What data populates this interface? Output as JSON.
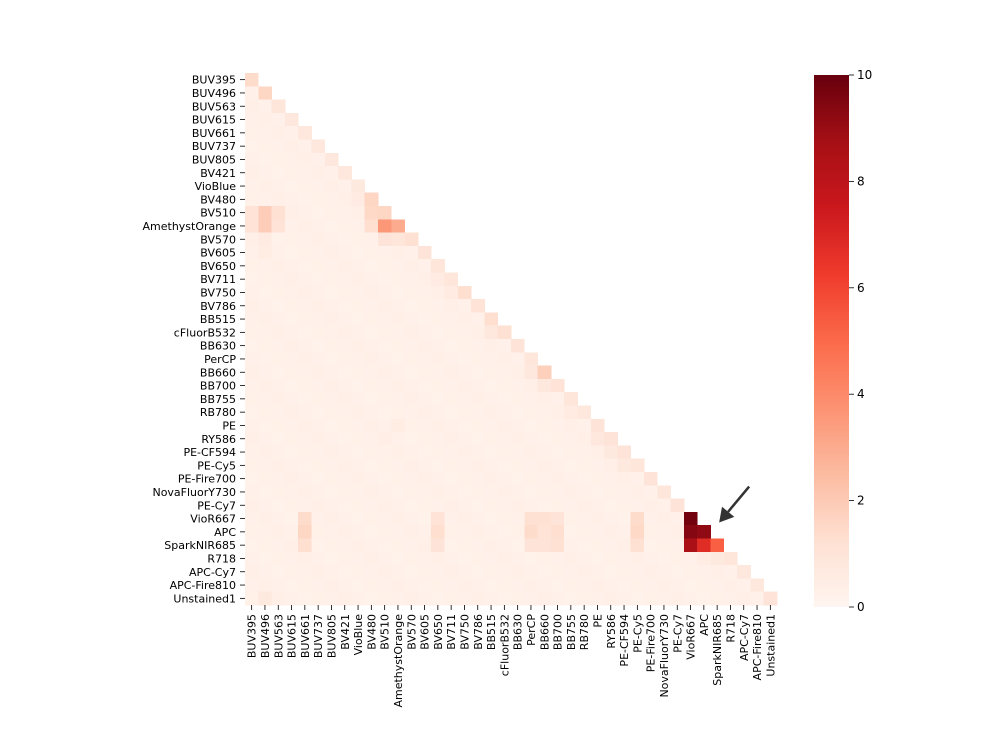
{
  "chart_data": {
    "type": "heatmap",
    "title": "",
    "xlabel": "",
    "ylabel": "",
    "mask": "lower-triangle",
    "labels": [
      "BUV395",
      "BUV496",
      "BUV563",
      "BUV615",
      "BUV661",
      "BUV737",
      "BUV805",
      "BV421",
      "VioBlue",
      "BV480",
      "BV510",
      "AmethystOrange",
      "BV570",
      "BV605",
      "BV650",
      "BV711",
      "BV750",
      "BV786",
      "BB515",
      "cFluorB532",
      "BB630",
      "PerCP",
      "BB660",
      "BB700",
      "BB755",
      "RB780",
      "PE",
      "RY586",
      "PE-CF594",
      "PE-Cy5",
      "PE-Fire700",
      "NovaFluorY730",
      "PE-Cy7",
      "VioR667",
      "APC",
      "SparkNIR685",
      "R718",
      "APC-Cy7",
      "APC-Fire810",
      "Unstained1"
    ],
    "colormap": "Reds",
    "colors": [
      "#fff5f0",
      "#fee0d2",
      "#fcbba1",
      "#fc9272",
      "#fb6a4a",
      "#ef3b2c",
      "#cb181d",
      "#a50f15",
      "#67000d"
    ],
    "vmin": 0,
    "vmax": 10,
    "colorbar_ticks": [
      "0",
      "2",
      "4",
      "6",
      "8",
      "10"
    ],
    "default_value": 0.2,
    "diagonal": [
      1.4,
      1.6,
      0.9,
      0.8,
      0.8,
      0.8,
      0.8,
      0.8,
      0.7,
      1.6,
      1.6,
      3.0,
      1.2,
      1.0,
      0.9,
      0.9,
      1.3,
      1.1,
      1.3,
      1.2,
      1.0,
      0.9,
      1.8,
      1.1,
      0.9,
      0.8,
      1.0,
      1.0,
      1.0,
      0.9,
      1.0,
      0.9,
      1.0,
      9.8,
      9.2,
      5.3,
      0.9,
      0.8,
      0.8,
      1.0
    ],
    "highlights": [
      {
        "row": "BV510",
        "col": "BUV496",
        "value": 1.9
      },
      {
        "row": "BV510",
        "col": "BUV395",
        "value": 1.1
      },
      {
        "row": "BV510",
        "col": "BUV563",
        "value": 1.2
      },
      {
        "row": "AmethystOrange",
        "col": "BUV496",
        "value": 1.9
      },
      {
        "row": "AmethystOrange",
        "col": "BUV395",
        "value": 1.1
      },
      {
        "row": "AmethystOrange",
        "col": "BUV563",
        "value": 1.1
      },
      {
        "row": "BV510",
        "col": "BV480",
        "value": 1.5
      },
      {
        "row": "AmethystOrange",
        "col": "BV480",
        "value": 1.3
      },
      {
        "row": "AmethystOrange",
        "col": "BV510",
        "value": 3.6
      },
      {
        "row": "BV570",
        "col": "BV510",
        "value": 1.0
      },
      {
        "row": "BV570",
        "col": "AmethystOrange",
        "value": 0.9
      },
      {
        "row": "VioR667",
        "col": "BUV661",
        "value": 1.4
      },
      {
        "row": "APC",
        "col": "BUV661",
        "value": 1.6
      },
      {
        "row": "SparkNIR685",
        "col": "BUV661",
        "value": 1.3
      },
      {
        "row": "VioR667",
        "col": "BV650",
        "value": 1.1
      },
      {
        "row": "APC",
        "col": "BV650",
        "value": 1.3
      },
      {
        "row": "SparkNIR685",
        "col": "BV650",
        "value": 1.0
      },
      {
        "row": "VioR667",
        "col": "PerCP",
        "value": 1.2
      },
      {
        "row": "APC",
        "col": "PerCP",
        "value": 1.4
      },
      {
        "row": "SparkNIR685",
        "col": "PerCP",
        "value": 1.0
      },
      {
        "row": "VioR667",
        "col": "BB660",
        "value": 1.2
      },
      {
        "row": "APC",
        "col": "BB660",
        "value": 1.1
      },
      {
        "row": "SparkNIR685",
        "col": "BB660",
        "value": 1.0
      },
      {
        "row": "VioR667",
        "col": "BB700",
        "value": 1.0
      },
      {
        "row": "APC",
        "col": "BB700",
        "value": 1.3
      },
      {
        "row": "SparkNIR685",
        "col": "BB700",
        "value": 1.2
      },
      {
        "row": "VioR667",
        "col": "PE-Cy5",
        "value": 1.4
      },
      {
        "row": "APC",
        "col": "PE-Cy5",
        "value": 1.5
      },
      {
        "row": "SparkNIR685",
        "col": "PE-Cy5",
        "value": 1.2
      },
      {
        "row": "APC",
        "col": "VioR667",
        "value": 9.4
      },
      {
        "row": "SparkNIR685",
        "col": "VioR667",
        "value": 8.6
      },
      {
        "row": "SparkNIR685",
        "col": "APC",
        "value": 6.8
      },
      {
        "row": "BB660",
        "col": "PerCP",
        "value": 0.8
      },
      {
        "row": "BB700",
        "col": "BB660",
        "value": 0.8
      },
      {
        "row": "BV711",
        "col": "BV650",
        "value": 0.6
      },
      {
        "row": "BV750",
        "col": "BV711",
        "value": 0.6
      },
      {
        "row": "PE-Cy5",
        "col": "PE-CF594",
        "value": 0.7
      },
      {
        "row": "RB780",
        "col": "BB755",
        "value": 0.6
      },
      {
        "row": "BV480",
        "col": "VioBlue",
        "value": 0.6
      },
      {
        "row": "cFluorB532",
        "col": "BB515",
        "value": 0.8
      },
      {
        "row": "R718",
        "col": "SparkNIR685",
        "value": 0.7
      },
      {
        "row": "R718",
        "col": "APC",
        "value": 0.5
      },
      {
        "row": "RY586",
        "col": "PE",
        "value": 0.8
      },
      {
        "row": "PE-CF594",
        "col": "RY586",
        "value": 0.7
      },
      {
        "row": "Unstained1",
        "col": "BUV496",
        "value": 0.7
      },
      {
        "row": "PE",
        "col": "AmethystOrange",
        "value": 0.5
      },
      {
        "row": "RY586",
        "col": "BV510",
        "value": 0.4
      },
      {
        "row": "BV570",
        "col": "BUV496",
        "value": 0.6
      },
      {
        "row": "BV605",
        "col": "BUV496",
        "value": 0.5
      }
    ],
    "annotation": {
      "type": "arrow",
      "target_row": "APC",
      "target_col": "SparkNIR685"
    }
  }
}
